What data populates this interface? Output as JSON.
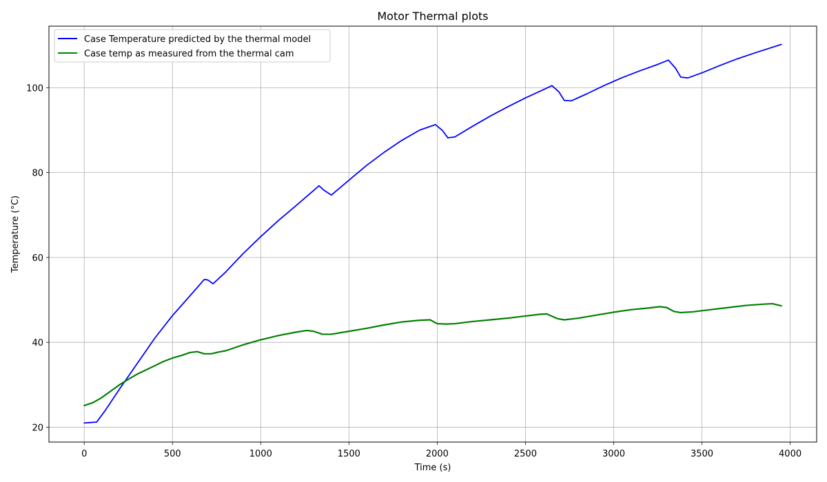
{
  "chart_data": {
    "type": "line",
    "title": "Motor Thermal plots",
    "xlabel": "Time (s)",
    "ylabel": "Temperature (°C)",
    "xlim": [
      -200,
      4150
    ],
    "ylim": [
      16.5,
      114.5
    ],
    "xticks": [
      0,
      500,
      1000,
      1500,
      2000,
      2500,
      3000,
      3500,
      4000
    ],
    "yticks": [
      20,
      40,
      60,
      80,
      100
    ],
    "grid": true,
    "legend_position": "top-left",
    "series": [
      {
        "name": "Case Temperature predicted by the thermal model",
        "color": "#0000ff",
        "x": [
          0,
          70,
          120,
          200,
          300,
          400,
          500,
          600,
          680,
          700,
          730,
          800,
          900,
          1000,
          1100,
          1200,
          1300,
          1330,
          1360,
          1400,
          1500,
          1600,
          1700,
          1800,
          1900,
          1990,
          2030,
          2060,
          2100,
          2200,
          2300,
          2400,
          2500,
          2600,
          2650,
          2690,
          2720,
          2760,
          2850,
          2950,
          3050,
          3150,
          3250,
          3310,
          3350,
          3380,
          3420,
          3500,
          3600,
          3700,
          3800,
          3950
        ],
        "y": [
          21.0,
          21.2,
          24.0,
          29.0,
          35.0,
          41.0,
          46.3,
          51.0,
          54.8,
          54.7,
          53.8,
          56.5,
          60.9,
          64.9,
          68.7,
          72.2,
          75.8,
          76.9,
          75.8,
          74.7,
          78.2,
          81.7,
          84.8,
          87.6,
          90.0,
          91.3,
          89.9,
          88.2,
          88.4,
          90.9,
          93.3,
          95.5,
          97.6,
          99.5,
          100.5,
          99.0,
          97.0,
          96.9,
          98.6,
          100.6,
          102.4,
          104.0,
          105.5,
          106.5,
          104.6,
          102.5,
          102.3,
          103.5,
          105.2,
          106.8,
          108.2,
          110.2
        ]
      },
      {
        "name": "Case temp as measured from the thermal cam",
        "color": "#008000",
        "x": [
          0,
          50,
          100,
          150,
          200,
          250,
          300,
          350,
          400,
          450,
          500,
          550,
          600,
          640,
          680,
          720,
          760,
          800,
          900,
          1000,
          1100,
          1200,
          1260,
          1300,
          1350,
          1400,
          1500,
          1600,
          1700,
          1800,
          1900,
          1960,
          2000,
          2050,
          2100,
          2200,
          2300,
          2400,
          2500,
          2580,
          2620,
          2680,
          2720,
          2800,
          2900,
          3000,
          3100,
          3200,
          3260,
          3300,
          3340,
          3380,
          3450,
          3550,
          3650,
          3750,
          3850,
          3900,
          3950
        ],
        "y": [
          25.1,
          25.8,
          27.0,
          28.5,
          30.0,
          31.3,
          32.5,
          33.5,
          34.5,
          35.5,
          36.3,
          36.9,
          37.6,
          37.8,
          37.3,
          37.3,
          37.7,
          38.0,
          39.4,
          40.6,
          41.6,
          42.4,
          42.8,
          42.6,
          41.9,
          41.9,
          42.6,
          43.3,
          44.1,
          44.8,
          45.2,
          45.3,
          44.4,
          44.3,
          44.4,
          44.9,
          45.3,
          45.7,
          46.2,
          46.6,
          46.7,
          45.6,
          45.3,
          45.7,
          46.4,
          47.1,
          47.7,
          48.1,
          48.4,
          48.2,
          47.3,
          47.0,
          47.2,
          47.7,
          48.2,
          48.7,
          49.0,
          49.1,
          48.6
        ]
      }
    ]
  }
}
